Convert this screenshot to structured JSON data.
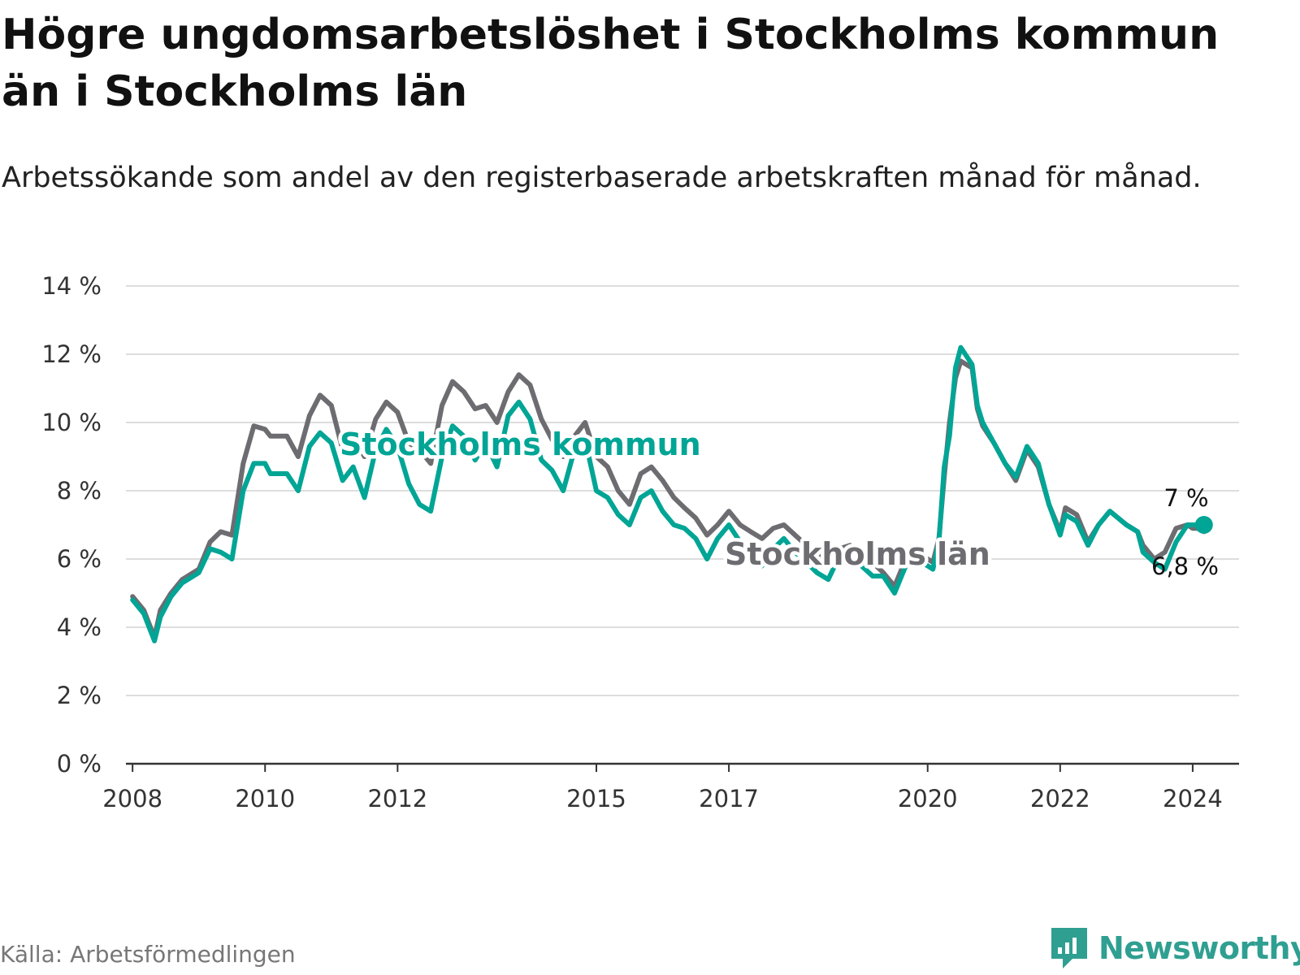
{
  "title": "Högre ungdomsarbetslöshet i Stockholms kommun än i Stockholms län",
  "subtitle": "Arbetssökande som andel av den registerbaserade arbetskraften månad för månad.",
  "source": "Källa: Arbetsförmedlingen",
  "brand": "Newsworthy",
  "colors": {
    "kommun": "#00a595",
    "lan": "#6d6c71",
    "grid": "#dddddd",
    "brand": "#2f9f91"
  },
  "chart_data": {
    "type": "line",
    "ylim": [
      0,
      14
    ],
    "xlim": [
      2007.9,
      2024.7
    ],
    "yticks": [
      0,
      2,
      4,
      6,
      8,
      10,
      12,
      14
    ],
    "ytick_labels": [
      "0 %",
      "2 %",
      "4 %",
      "6 %",
      "8 %",
      "10 %",
      "12 %",
      "14 %"
    ],
    "xticks": [
      2008,
      2010,
      2012,
      2015,
      2017,
      2020,
      2022,
      2024
    ],
    "xtick_labels": [
      "2008",
      "2010",
      "2012",
      "2015",
      "2017",
      "2020",
      "2022",
      "2024"
    ],
    "series": [
      {
        "name": "Stockholms län",
        "label": "Stockholms län",
        "end_label": "6,8 %",
        "points": [
          [
            2008.0,
            4.9
          ],
          [
            2008.17,
            4.5
          ],
          [
            2008.33,
            3.7
          ],
          [
            2008.42,
            4.5
          ],
          [
            2008.58,
            5.0
          ],
          [
            2008.75,
            5.4
          ],
          [
            2009.0,
            5.7
          ],
          [
            2009.17,
            6.5
          ],
          [
            2009.33,
            6.8
          ],
          [
            2009.5,
            6.7
          ],
          [
            2009.67,
            8.8
          ],
          [
            2009.83,
            9.9
          ],
          [
            2010.0,
            9.8
          ],
          [
            2010.08,
            9.6
          ],
          [
            2010.33,
            9.6
          ],
          [
            2010.5,
            9.0
          ],
          [
            2010.67,
            10.2
          ],
          [
            2010.83,
            10.8
          ],
          [
            2011.0,
            10.5
          ],
          [
            2011.17,
            9.2
          ],
          [
            2011.33,
            9.6
          ],
          [
            2011.5,
            9.0
          ],
          [
            2011.67,
            10.1
          ],
          [
            2011.83,
            10.6
          ],
          [
            2012.0,
            10.3
          ],
          [
            2012.17,
            9.4
          ],
          [
            2012.33,
            9.2
          ],
          [
            2012.5,
            8.8
          ],
          [
            2012.67,
            10.5
          ],
          [
            2012.83,
            11.2
          ],
          [
            2013.0,
            10.9
          ],
          [
            2013.17,
            10.4
          ],
          [
            2013.33,
            10.5
          ],
          [
            2013.5,
            10.0
          ],
          [
            2013.67,
            10.9
          ],
          [
            2013.83,
            11.4
          ],
          [
            2014.0,
            11.1
          ],
          [
            2014.17,
            10.1
          ],
          [
            2014.33,
            9.5
          ],
          [
            2014.5,
            9.0
          ],
          [
            2014.67,
            9.6
          ],
          [
            2014.83,
            10.0
          ],
          [
            2015.0,
            9.0
          ],
          [
            2015.17,
            8.7
          ],
          [
            2015.33,
            8.0
          ],
          [
            2015.5,
            7.6
          ],
          [
            2015.67,
            8.5
          ],
          [
            2015.83,
            8.7
          ],
          [
            2016.0,
            8.3
          ],
          [
            2016.17,
            7.8
          ],
          [
            2016.33,
            7.5
          ],
          [
            2016.5,
            7.2
          ],
          [
            2016.67,
            6.7
          ],
          [
            2016.83,
            7.0
          ],
          [
            2017.0,
            7.4
          ],
          [
            2017.17,
            7.0
          ],
          [
            2017.33,
            6.8
          ],
          [
            2017.5,
            6.6
          ],
          [
            2017.67,
            6.9
          ],
          [
            2017.83,
            7.0
          ],
          [
            2018.0,
            6.7
          ],
          [
            2018.17,
            6.4
          ],
          [
            2018.33,
            6.2
          ],
          [
            2018.5,
            6.0
          ],
          [
            2018.67,
            6.3
          ],
          [
            2018.83,
            6.4
          ],
          [
            2019.0,
            6.0
          ],
          [
            2019.17,
            5.9
          ],
          [
            2019.33,
            5.6
          ],
          [
            2019.5,
            5.2
          ],
          [
            2019.67,
            6.0
          ],
          [
            2019.83,
            6.2
          ],
          [
            2020.0,
            6.0
          ],
          [
            2020.08,
            5.9
          ],
          [
            2020.17,
            6.6
          ],
          [
            2020.25,
            8.4
          ],
          [
            2020.33,
            10.0
          ],
          [
            2020.42,
            11.3
          ],
          [
            2020.5,
            11.8
          ],
          [
            2020.67,
            11.6
          ],
          [
            2020.75,
            10.4
          ],
          [
            2020.83,
            9.9
          ],
          [
            2021.0,
            9.4
          ],
          [
            2021.17,
            8.8
          ],
          [
            2021.33,
            8.3
          ],
          [
            2021.5,
            9.2
          ],
          [
            2021.67,
            8.7
          ],
          [
            2021.83,
            7.6
          ],
          [
            2022.0,
            6.8
          ],
          [
            2022.08,
            7.5
          ],
          [
            2022.25,
            7.3
          ],
          [
            2022.42,
            6.5
          ],
          [
            2022.58,
            7.0
          ],
          [
            2022.75,
            7.4
          ],
          [
            2023.0,
            7.0
          ],
          [
            2023.17,
            6.8
          ],
          [
            2023.25,
            6.4
          ],
          [
            2023.42,
            6.0
          ],
          [
            2023.58,
            6.2
          ],
          [
            2023.75,
            6.9
          ],
          [
            2023.92,
            7.0
          ],
          [
            2024.0,
            6.9
          ],
          [
            2024.08,
            6.9
          ],
          [
            2024.17,
            6.8
          ]
        ]
      },
      {
        "name": "Stockholms kommun",
        "label": "Stockholms kommun",
        "end_label": "7 %",
        "points": [
          [
            2008.0,
            4.8
          ],
          [
            2008.17,
            4.4
          ],
          [
            2008.33,
            3.6
          ],
          [
            2008.42,
            4.3
          ],
          [
            2008.58,
            4.9
          ],
          [
            2008.75,
            5.3
          ],
          [
            2009.0,
            5.6
          ],
          [
            2009.17,
            6.3
          ],
          [
            2009.33,
            6.2
          ],
          [
            2009.5,
            6.0
          ],
          [
            2009.67,
            8.0
          ],
          [
            2009.83,
            8.8
          ],
          [
            2010.0,
            8.8
          ],
          [
            2010.08,
            8.5
          ],
          [
            2010.33,
            8.5
          ],
          [
            2010.5,
            8.0
          ],
          [
            2010.67,
            9.3
          ],
          [
            2010.83,
            9.7
          ],
          [
            2011.0,
            9.4
          ],
          [
            2011.17,
            8.3
          ],
          [
            2011.33,
            8.7
          ],
          [
            2011.5,
            7.8
          ],
          [
            2011.67,
            9.2
          ],
          [
            2011.83,
            9.8
          ],
          [
            2012.0,
            9.3
          ],
          [
            2012.17,
            8.2
          ],
          [
            2012.33,
            7.6
          ],
          [
            2012.5,
            7.4
          ],
          [
            2012.67,
            9.0
          ],
          [
            2012.83,
            9.9
          ],
          [
            2013.0,
            9.6
          ],
          [
            2013.17,
            8.9
          ],
          [
            2013.33,
            9.4
          ],
          [
            2013.5,
            8.7
          ],
          [
            2013.67,
            10.2
          ],
          [
            2013.83,
            10.6
          ],
          [
            2014.0,
            10.1
          ],
          [
            2014.17,
            8.9
          ],
          [
            2014.33,
            8.6
          ],
          [
            2014.5,
            8.0
          ],
          [
            2014.67,
            9.2
          ],
          [
            2014.83,
            9.5
          ],
          [
            2015.0,
            8.0
          ],
          [
            2015.17,
            7.8
          ],
          [
            2015.33,
            7.3
          ],
          [
            2015.5,
            7.0
          ],
          [
            2015.67,
            7.8
          ],
          [
            2015.83,
            8.0
          ],
          [
            2016.0,
            7.4
          ],
          [
            2016.17,
            7.0
          ],
          [
            2016.33,
            6.9
          ],
          [
            2016.5,
            6.6
          ],
          [
            2016.67,
            6.0
          ],
          [
            2016.83,
            6.6
          ],
          [
            2017.0,
            7.0
          ],
          [
            2017.17,
            6.5
          ],
          [
            2017.33,
            6.0
          ],
          [
            2017.5,
            5.8
          ],
          [
            2017.67,
            6.3
          ],
          [
            2017.83,
            6.6
          ],
          [
            2018.0,
            6.2
          ],
          [
            2018.17,
            5.9
          ],
          [
            2018.33,
            5.6
          ],
          [
            2018.5,
            5.4
          ],
          [
            2018.67,
            6.1
          ],
          [
            2018.83,
            6.2
          ],
          [
            2019.0,
            5.8
          ],
          [
            2019.17,
            5.5
          ],
          [
            2019.33,
            5.5
          ],
          [
            2019.5,
            5.0
          ],
          [
            2019.67,
            5.8
          ],
          [
            2019.83,
            6.0
          ],
          [
            2020.0,
            5.8
          ],
          [
            2020.08,
            5.7
          ],
          [
            2020.17,
            6.5
          ],
          [
            2020.25,
            8.7
          ],
          [
            2020.33,
            9.6
          ],
          [
            2020.42,
            11.6
          ],
          [
            2020.5,
            12.2
          ],
          [
            2020.67,
            11.7
          ],
          [
            2020.75,
            10.5
          ],
          [
            2020.83,
            10.0
          ],
          [
            2021.0,
            9.4
          ],
          [
            2021.17,
            8.8
          ],
          [
            2021.33,
            8.4
          ],
          [
            2021.5,
            9.3
          ],
          [
            2021.67,
            8.8
          ],
          [
            2021.83,
            7.6
          ],
          [
            2022.0,
            6.7
          ],
          [
            2022.08,
            7.3
          ],
          [
            2022.25,
            7.1
          ],
          [
            2022.42,
            6.4
          ],
          [
            2022.58,
            7.0
          ],
          [
            2022.75,
            7.4
          ],
          [
            2023.0,
            7.0
          ],
          [
            2023.17,
            6.8
          ],
          [
            2023.25,
            6.2
          ],
          [
            2023.42,
            5.9
          ],
          [
            2023.58,
            5.7
          ],
          [
            2023.75,
            6.5
          ],
          [
            2023.92,
            7.0
          ],
          [
            2024.0,
            7.0
          ],
          [
            2024.08,
            7.0
          ],
          [
            2024.17,
            7.0
          ]
        ]
      }
    ]
  }
}
